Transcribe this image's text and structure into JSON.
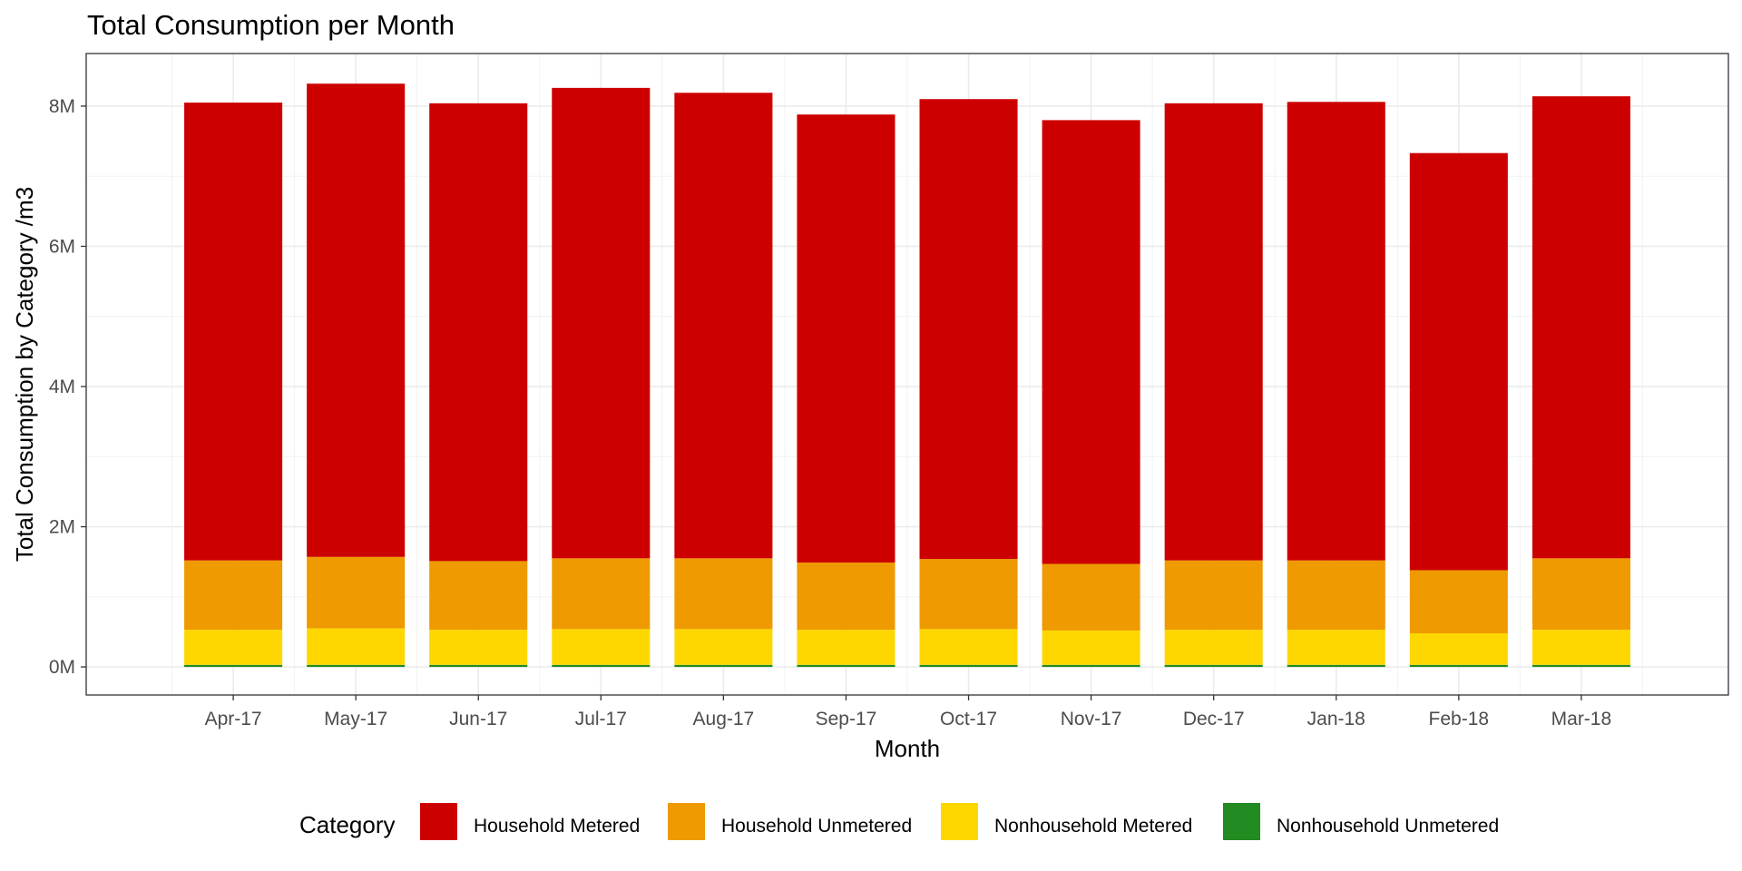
{
  "chart_data": {
    "type": "bar",
    "stacked": true,
    "title": "Total Consumption per Month",
    "xlabel": "Month",
    "ylabel": "Total Consumption by Category /m3",
    "categories": [
      "Apr-17",
      "May-17",
      "Jun-17",
      "Jul-17",
      "Aug-17",
      "Sep-17",
      "Oct-17",
      "Nov-17",
      "Dec-17",
      "Jan-18",
      "Feb-18",
      "Mar-18"
    ],
    "series": [
      {
        "name": "Nonhousehold Unmetered",
        "color": "#228b22",
        "values": [
          30000,
          30000,
          30000,
          30000,
          30000,
          30000,
          30000,
          30000,
          30000,
          30000,
          30000,
          30000
        ]
      },
      {
        "name": "Nonhousehold Metered",
        "color": "#ffd700",
        "values": [
          500000,
          520000,
          500000,
          510000,
          510000,
          500000,
          510000,
          490000,
          500000,
          500000,
          450000,
          500000
        ]
      },
      {
        "name": "Household Unmetered",
        "color": "#ee9a00",
        "values": [
          990000,
          1020000,
          980000,
          1010000,
          1010000,
          960000,
          1000000,
          950000,
          990000,
          990000,
          900000,
          1020000
        ]
      },
      {
        "name": "Household Metered",
        "color": "#cd0000",
        "values": [
          6530000,
          6750000,
          6530000,
          6710000,
          6640000,
          6390000,
          6560000,
          6330000,
          6520000,
          6540000,
          5950000,
          6590000
        ]
      }
    ],
    "ylim": [
      -400000,
      8750000
    ],
    "yticks": [
      0,
      2000000,
      4000000,
      6000000,
      8000000
    ],
    "ytick_labels": [
      "0M",
      "2M",
      "4M",
      "6M",
      "8M"
    ],
    "grid": true,
    "legend": {
      "title": "Category",
      "position": "bottom",
      "order": [
        "Household Metered",
        "Household Unmetered",
        "Nonhousehold Metered",
        "Nonhousehold Unmetered"
      ]
    }
  }
}
